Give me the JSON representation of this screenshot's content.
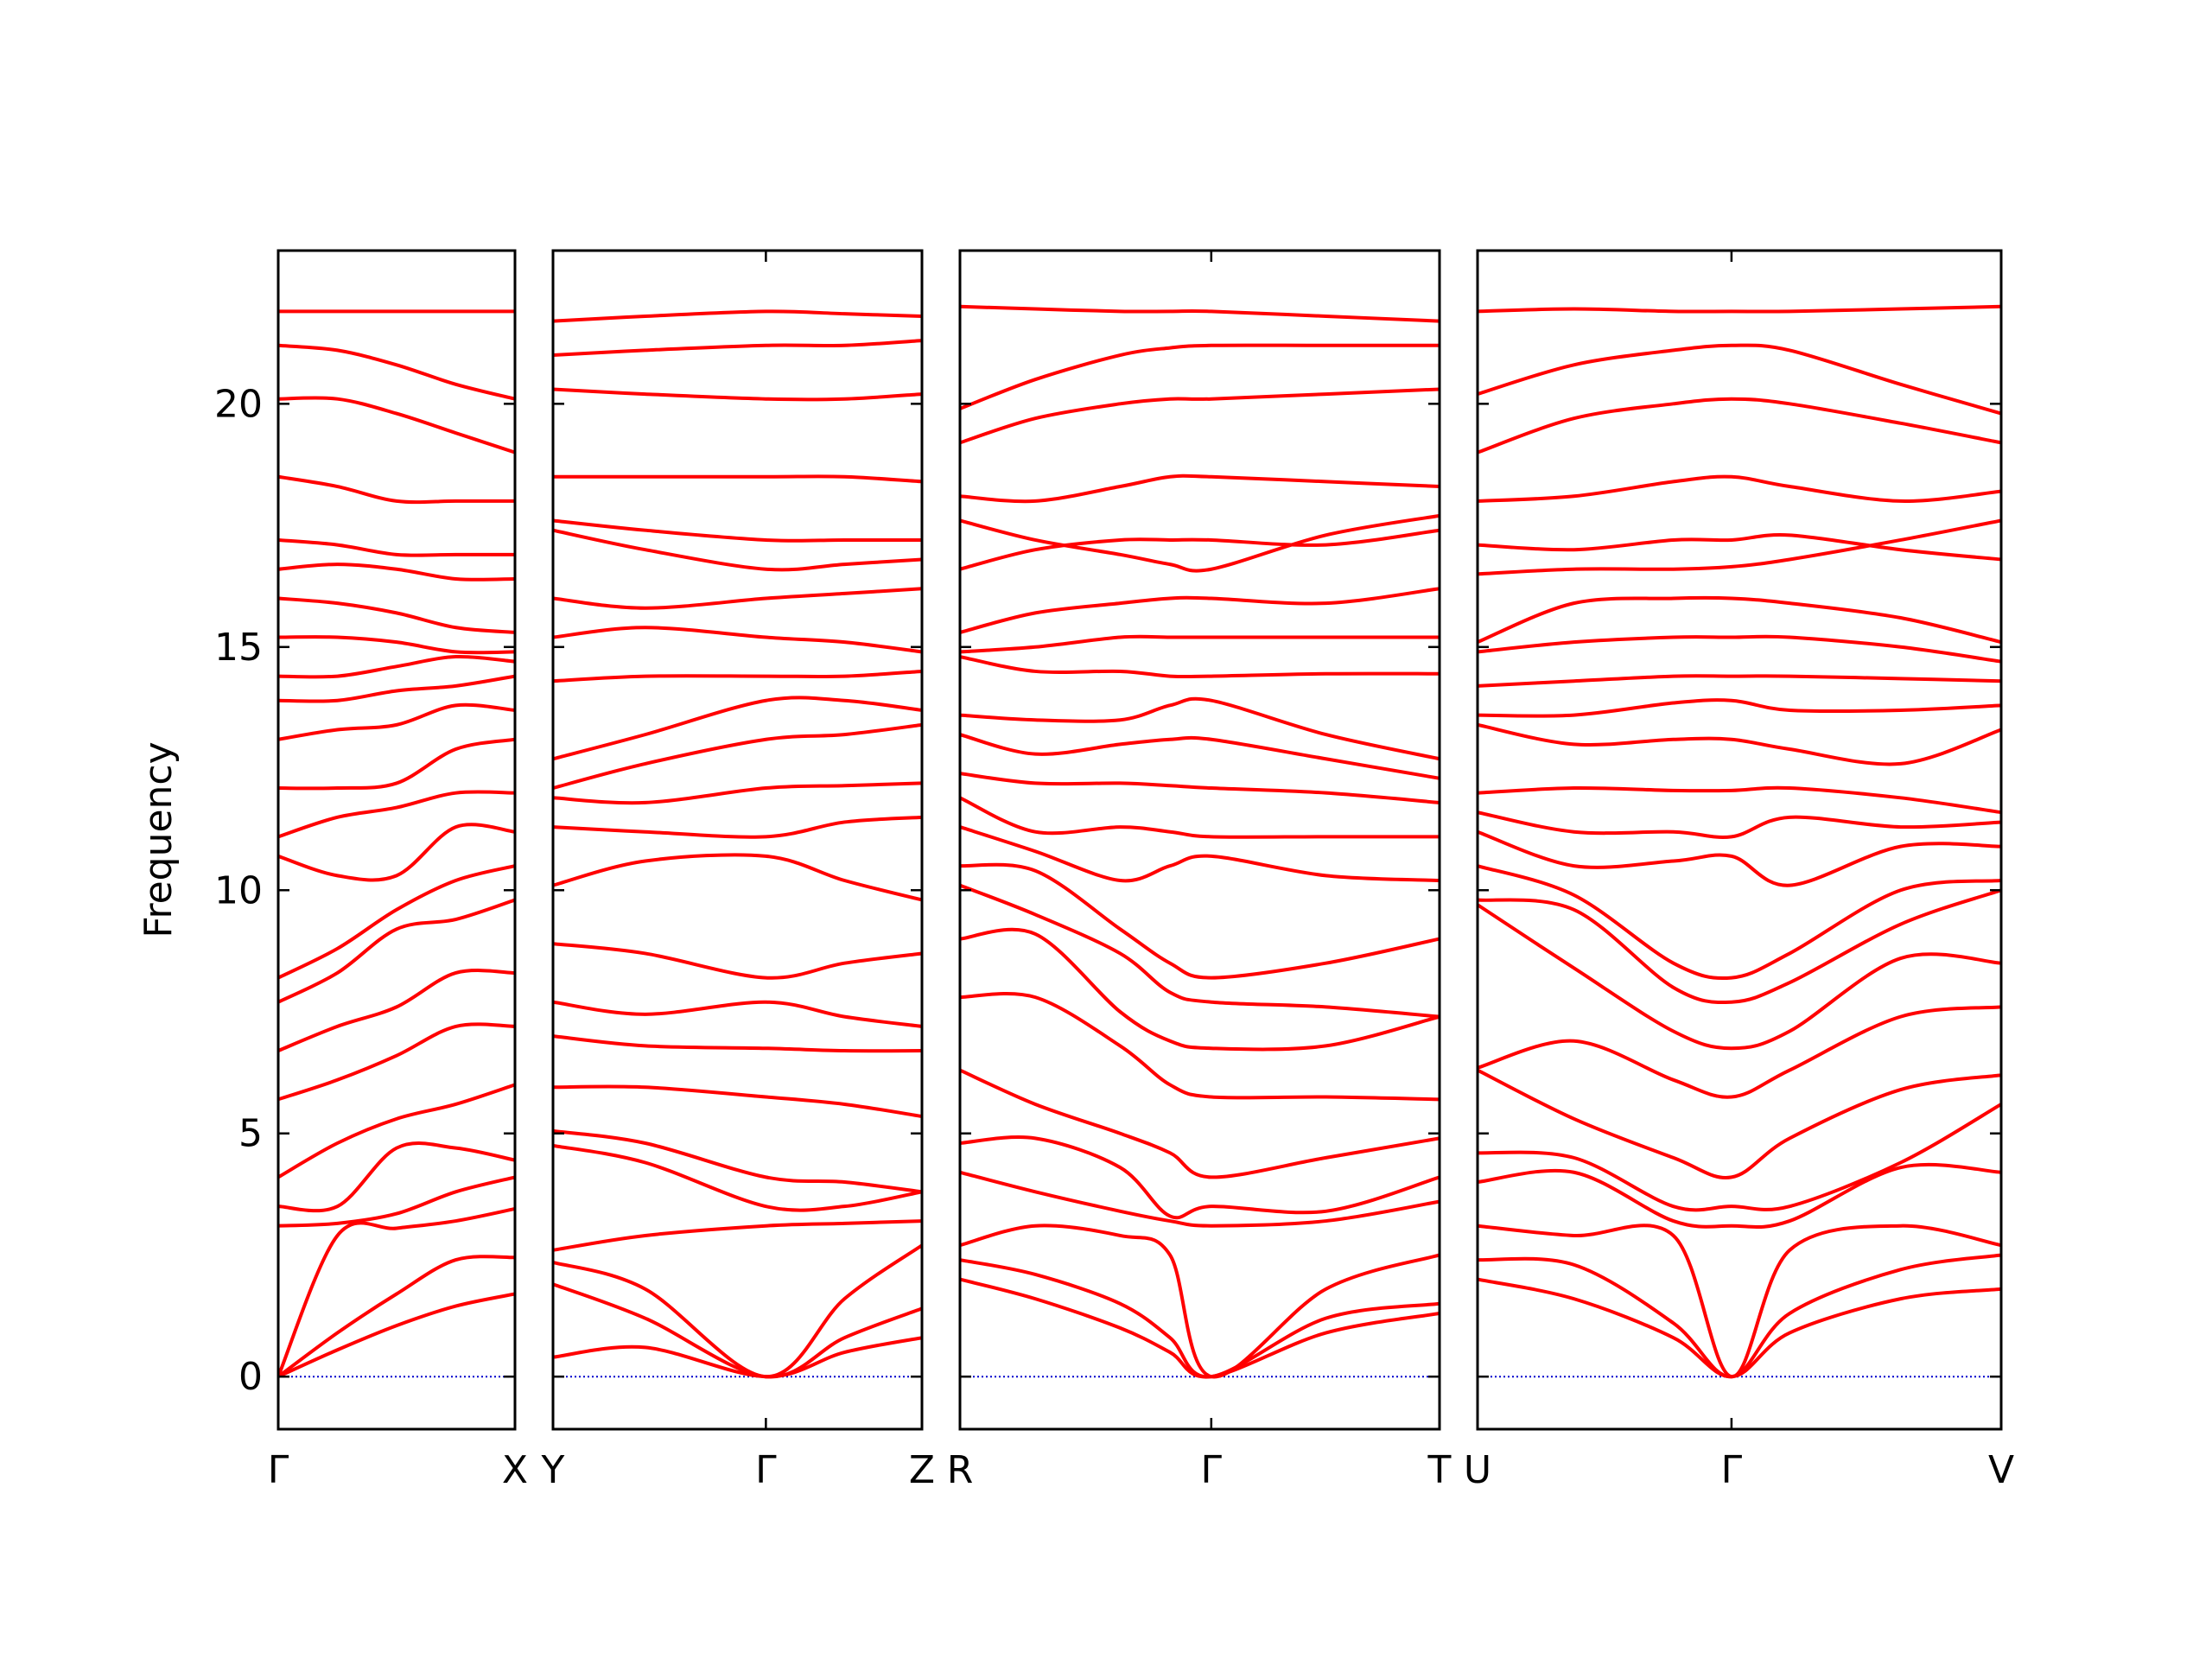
{
  "chart_data": [
    {
      "type": "line",
      "ylabel": "Frequency",
      "color": "#ff0000",
      "hline": 0,
      "hline_color": "#0000cc",
      "xlim": [
        0,
        1
      ],
      "xticks": [
        {
          "value": 0,
          "label": "Γ"
        },
        {
          "value": 1,
          "label": "X"
        }
      ],
      "ylim": [
        -1.08,
        23.15
      ],
      "yticks": [
        0,
        5,
        10,
        15,
        20
      ],
      "x": [
        0,
        0.25,
        0.5,
        0.75,
        1
      ],
      "series": [
        {
          "values": [
            0,
            0.55,
            1.05,
            1.45,
            1.7
          ]
        },
        {
          "values": [
            0,
            0.9,
            1.7,
            2.4,
            2.45
          ]
        },
        {
          "values": [
            0,
            2.9,
            3.05,
            3.2,
            3.45
          ]
        },
        {
          "values": [
            3.1,
            3.15,
            3.35,
            3.8,
            4.1
          ]
        },
        {
          "values": [
            3.5,
            3.5,
            4.7,
            4.7,
            4.45
          ]
        },
        {
          "values": [
            4.1,
            4.8,
            5.3,
            5.6,
            6.0
          ]
        },
        {
          "values": [
            5.7,
            6.1,
            6.6,
            7.2,
            7.2
          ]
        },
        {
          "values": [
            6.7,
            7.2,
            7.6,
            8.3,
            8.3
          ]
        },
        {
          "values": [
            7.7,
            8.3,
            9.2,
            9.4,
            9.8
          ]
        },
        {
          "values": [
            8.2,
            8.8,
            9.6,
            10.2,
            10.5
          ]
        },
        {
          "values": [
            10.7,
            10.3,
            10.3,
            11.3,
            11.2
          ]
        },
        {
          "values": [
            11.1,
            11.5,
            11.7,
            12.0,
            12.0
          ]
        },
        {
          "values": [
            12.1,
            12.1,
            12.2,
            12.9,
            13.1
          ]
        },
        {
          "values": [
            13.1,
            13.3,
            13.4,
            13.8,
            13.7
          ]
        },
        {
          "values": [
            13.9,
            13.9,
            14.1,
            14.2,
            14.4
          ]
        },
        {
          "values": [
            14.4,
            14.4,
            14.6,
            14.8,
            14.7
          ]
        },
        {
          "values": [
            15.2,
            15.2,
            15.1,
            14.9,
            14.9
          ]
        },
        {
          "values": [
            16.0,
            15.9,
            15.7,
            15.4,
            15.3
          ]
        },
        {
          "values": [
            16.6,
            16.7,
            16.6,
            16.4,
            16.4
          ]
        },
        {
          "values": [
            17.2,
            17.1,
            16.9,
            16.9,
            16.9
          ]
        },
        {
          "values": [
            18.5,
            18.3,
            18.0,
            18.0,
            18.0
          ]
        },
        {
          "values": [
            20.1,
            20.1,
            19.8,
            19.4,
            19.0
          ]
        },
        {
          "values": [
            21.2,
            21.1,
            20.8,
            20.4,
            20.1
          ]
        },
        {
          "values": [
            21.9,
            21.9,
            21.9,
            21.9,
            21.9
          ]
        }
      ]
    },
    {
      "type": "line",
      "color": "#ff0000",
      "hline": 0,
      "hline_color": "#0000cc",
      "xlim": [
        0,
        1
      ],
      "xticks": [
        {
          "value": 0,
          "label": "Y"
        },
        {
          "value": 0.577,
          "label": "Γ"
        },
        {
          "value": 1,
          "label": "Z"
        }
      ],
      "ylim": [
        -1.08,
        23.15
      ],
      "yticks": [
        0,
        5,
        10,
        15,
        20
      ],
      "x": [
        0,
        0.25,
        0.577,
        0.79,
        1
      ],
      "series": [
        {
          "values": [
            0.4,
            0.6,
            0,
            0.5,
            0.8
          ]
        },
        {
          "values": [
            1.9,
            1.2,
            0,
            0.8,
            1.4
          ]
        },
        {
          "values": [
            2.35,
            1.8,
            0,
            1.6,
            2.7
          ]
        },
        {
          "values": [
            2.6,
            2.9,
            3.1,
            3.15,
            3.2
          ]
        },
        {
          "values": [
            4.75,
            4.4,
            3.5,
            3.5,
            3.8
          ]
        },
        {
          "values": [
            5.05,
            4.8,
            4.1,
            4.0,
            3.8
          ]
        },
        {
          "values": [
            5.95,
            5.95,
            5.75,
            5.6,
            5.35
          ]
        },
        {
          "values": [
            7.0,
            6.8,
            6.75,
            6.7,
            6.7
          ]
        },
        {
          "values": [
            7.7,
            7.45,
            7.7,
            7.4,
            7.2
          ]
        },
        {
          "values": [
            8.9,
            8.7,
            8.2,
            8.5,
            8.7
          ]
        },
        {
          "values": [
            10.1,
            10.6,
            10.7,
            10.2,
            9.8
          ]
        },
        {
          "values": [
            11.3,
            11.2,
            11.1,
            11.4,
            11.5
          ]
        },
        {
          "values": [
            11.9,
            11.8,
            12.1,
            12.15,
            12.2
          ]
        },
        {
          "values": [
            12.1,
            12.6,
            13.1,
            13.2,
            13.4
          ]
        },
        {
          "values": [
            12.7,
            13.2,
            13.9,
            13.9,
            13.7
          ]
        },
        {
          "values": [
            14.3,
            14.4,
            14.4,
            14.4,
            14.5
          ]
        },
        {
          "values": [
            15.2,
            15.4,
            15.2,
            15.1,
            14.9
          ]
        },
        {
          "values": [
            16.0,
            15.8,
            16.0,
            16.1,
            16.2
          ]
        },
        {
          "values": [
            17.4,
            17.0,
            16.6,
            16.7,
            16.8
          ]
        },
        {
          "values": [
            17.6,
            17.4,
            17.2,
            17.2,
            17.2
          ]
        },
        {
          "values": [
            18.5,
            18.5,
            18.5,
            18.5,
            18.4
          ]
        },
        {
          "values": [
            20.3,
            20.2,
            20.1,
            20.1,
            20.2
          ]
        },
        {
          "values": [
            21.0,
            21.1,
            21.2,
            21.2,
            21.3
          ]
        },
        {
          "values": [
            21.7,
            21.8,
            21.9,
            21.85,
            21.8
          ]
        }
      ]
    },
    {
      "type": "line",
      "color": "#ff0000",
      "hline": 0,
      "hline_color": "#0000cc",
      "xlim": [
        0,
        1
      ],
      "xticks": [
        {
          "value": 0,
          "label": "R"
        },
        {
          "value": 0.524,
          "label": "Γ"
        },
        {
          "value": 1,
          "label": "T"
        }
      ],
      "ylim": [
        -1.08,
        23.15
      ],
      "yticks": [
        0,
        5,
        10,
        15,
        20
      ],
      "x": [
        0,
        0.157,
        0.334,
        0.438,
        0.524,
        0.763,
        1
      ],
      "series": [
        {
          "values": [
            2.0,
            1.6,
            1.0,
            0.5,
            0,
            0.9,
            1.3
          ]
        },
        {
          "values": [
            2.4,
            2.1,
            1.5,
            0.8,
            0,
            1.2,
            1.5
          ]
        },
        {
          "values": [
            2.7,
            3.1,
            2.9,
            2.5,
            0,
            1.8,
            2.5
          ]
        },
        {
          "values": [
            4.2,
            3.8,
            3.4,
            3.2,
            3.1,
            3.2,
            3.6
          ]
        },
        {
          "values": [
            4.8,
            4.9,
            4.3,
            3.3,
            3.5,
            3.4,
            4.1
          ]
        },
        {
          "values": [
            6.3,
            5.6,
            5.0,
            4.6,
            4.1,
            4.5,
            4.9
          ]
        },
        {
          "values": [
            7.8,
            7.8,
            6.8,
            6.0,
            5.75,
            5.75,
            5.7
          ]
        },
        {
          "values": [
            9.0,
            9.1,
            7.5,
            6.9,
            6.75,
            6.8,
            7.4
          ]
        },
        {
          "values": [
            10.1,
            9.5,
            8.7,
            7.9,
            7.7,
            7.6,
            7.4
          ]
        },
        {
          "values": [
            10.5,
            10.4,
            9.2,
            8.5,
            8.2,
            8.5,
            9.0
          ]
        },
        {
          "values": [
            11.3,
            10.8,
            10.2,
            10.5,
            10.7,
            10.3,
            10.2
          ]
        },
        {
          "values": [
            11.9,
            11.2,
            11.3,
            11.2,
            11.1,
            11.1,
            11.1
          ]
        },
        {
          "values": [
            12.4,
            12.2,
            12.2,
            12.15,
            12.1,
            12.0,
            11.8
          ]
        },
        {
          "values": [
            13.2,
            12.8,
            13.0,
            13.1,
            13.1,
            12.7,
            12.3
          ]
        },
        {
          "values": [
            13.6,
            13.5,
            13.5,
            13.8,
            13.9,
            13.2,
            12.7
          ]
        },
        {
          "values": [
            14.8,
            14.5,
            14.5,
            14.4,
            14.4,
            14.45,
            14.45
          ]
        },
        {
          "values": [
            15.3,
            15.7,
            15.9,
            16.0,
            16.0,
            15.9,
            16.2
          ]
        },
        {
          "values": [
            14.9,
            15.0,
            15.2,
            15.2,
            15.2,
            15.2,
            15.2
          ]
        },
        {
          "values": [
            16.6,
            17.0,
            17.2,
            17.2,
            17.2,
            17.1,
            17.4
          ]
        },
        {
          "values": [
            17.6,
            17.2,
            16.9,
            16.7,
            16.6,
            17.3,
            17.7
          ]
        },
        {
          "values": [
            18.1,
            18.0,
            18.3,
            18.5,
            18.5,
            18.4,
            18.3
          ]
        },
        {
          "values": [
            19.2,
            19.7,
            20.0,
            20.1,
            20.1,
            20.2,
            20.3
          ]
        },
        {
          "values": [
            19.9,
            20.5,
            21.0,
            21.15,
            21.2,
            21.2,
            21.2
          ]
        },
        {
          "values": [
            22.0,
            21.95,
            21.9,
            21.9,
            21.9,
            21.8,
            21.7
          ]
        }
      ]
    },
    {
      "type": "line",
      "color": "#ff0000",
      "hline": 0,
      "hline_color": "#0000cc",
      "xlim": [
        0,
        1
      ],
      "xticks": [
        {
          "value": 0,
          "label": "U"
        },
        {
          "value": 0.485,
          "label": "Γ"
        },
        {
          "value": 1,
          "label": "V"
        }
      ],
      "ylim": [
        -1.08,
        23.15
      ],
      "yticks": [
        0,
        5,
        10,
        15,
        20
      ],
      "x": [
        0,
        0.184,
        0.374,
        0.485,
        0.596,
        0.808,
        1
      ],
      "series": [
        {
          "values": [
            2.0,
            1.6,
            0.8,
            0,
            0.9,
            1.6,
            1.8
          ]
        },
        {
          "values": [
            2.4,
            2.3,
            1.1,
            0,
            1.3,
            2.2,
            2.5
          ]
        },
        {
          "values": [
            3.1,
            2.9,
            2.9,
            0,
            2.6,
            3.1,
            2.7
          ]
        },
        {
          "values": [
            4.0,
            4.2,
            3.2,
            3.1,
            3.2,
            4.3,
            4.2
          ]
        },
        {
          "values": [
            4.6,
            4.5,
            3.5,
            3.5,
            3.5,
            4.4,
            5.6
          ]
        },
        {
          "values": [
            6.3,
            5.3,
            4.5,
            4.1,
            4.9,
            5.9,
            6.2
          ]
        },
        {
          "values": [
            6.35,
            6.9,
            6.1,
            5.75,
            6.3,
            7.4,
            7.6
          ]
        },
        {
          "values": [
            9.7,
            8.4,
            7.1,
            6.75,
            7.1,
            8.6,
            8.5
          ]
        },
        {
          "values": [
            9.8,
            9.6,
            8.0,
            7.7,
            8.1,
            9.3,
            10.0
          ]
        },
        {
          "values": [
            10.5,
            9.9,
            8.5,
            8.2,
            8.7,
            10.0,
            10.2
          ]
        },
        {
          "values": [
            11.2,
            10.5,
            10.6,
            10.7,
            10.1,
            10.9,
            10.9
          ]
        },
        {
          "values": [
            11.6,
            11.2,
            11.2,
            11.1,
            11.5,
            11.3,
            11.4
          ]
        },
        {
          "values": [
            12.0,
            12.1,
            12.05,
            12.05,
            12.1,
            11.9,
            11.6
          ]
        },
        {
          "values": [
            13.4,
            13.0,
            13.1,
            13.1,
            12.9,
            12.6,
            13.3
          ]
        },
        {
          "values": [
            13.6,
            13.6,
            13.85,
            13.9,
            13.7,
            13.7,
            13.8
          ]
        },
        {
          "values": [
            14.2,
            14.3,
            14.4,
            14.4,
            14.4,
            14.35,
            14.3
          ]
        },
        {
          "values": [
            14.9,
            15.1,
            15.2,
            15.2,
            15.2,
            15.0,
            14.7
          ]
        },
        {
          "values": [
            15.1,
            15.9,
            16.0,
            16.0,
            15.9,
            15.6,
            15.1
          ]
        },
        {
          "values": [
            16.5,
            16.6,
            16.6,
            16.65,
            16.8,
            17.2,
            17.6
          ]
        },
        {
          "values": [
            17.1,
            17.0,
            17.2,
            17.2,
            17.3,
            17.0,
            16.8
          ]
        },
        {
          "values": [
            18.0,
            18.1,
            18.4,
            18.5,
            18.3,
            18.0,
            18.2
          ]
        },
        {
          "values": [
            19.0,
            19.7,
            20.0,
            20.1,
            20.0,
            19.6,
            19.2
          ]
        },
        {
          "values": [
            20.2,
            20.8,
            21.1,
            21.2,
            21.1,
            20.4,
            19.8
          ]
        },
        {
          "values": [
            21.9,
            21.95,
            21.9,
            21.9,
            21.9,
            21.95,
            22.0
          ]
        }
      ]
    }
  ]
}
